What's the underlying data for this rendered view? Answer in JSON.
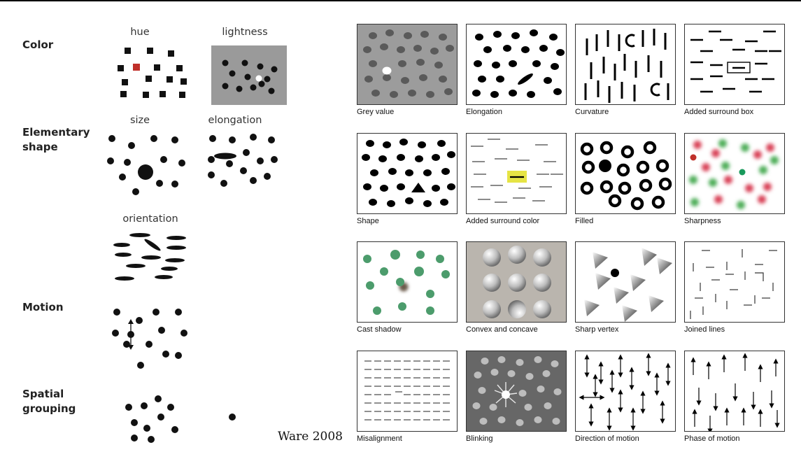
{
  "credit": "Ware 2008",
  "sections": [
    {
      "key": "color",
      "title": "Color",
      "subs": [
        "hue",
        "lightness"
      ]
    },
    {
      "key": "shape",
      "title": "Elementary\nshape",
      "subs": [
        "size",
        "elongation",
        "orientation"
      ]
    },
    {
      "key": "motion",
      "title": "Motion",
      "subs": []
    },
    {
      "key": "spatial",
      "title": "Spatial\ngrouping",
      "subs": []
    }
  ],
  "panels": [
    "Grey value",
    "Elongation",
    "Curvature",
    "Added surround box",
    "Shape",
    "Added surround color",
    "Filled",
    "Sharpness",
    "Cast shadow",
    "Convex and concave",
    "Sharp vertex",
    "Joined lines",
    "Misalignment",
    "Blinking",
    "Direction of motion",
    "Phase of motion"
  ],
  "colors": {
    "highlight_red": "#c0302a",
    "highlight_green": "#1a9a5c",
    "shadow_green": "#4c9c6c",
    "surround_yellow": "#e6e445"
  }
}
